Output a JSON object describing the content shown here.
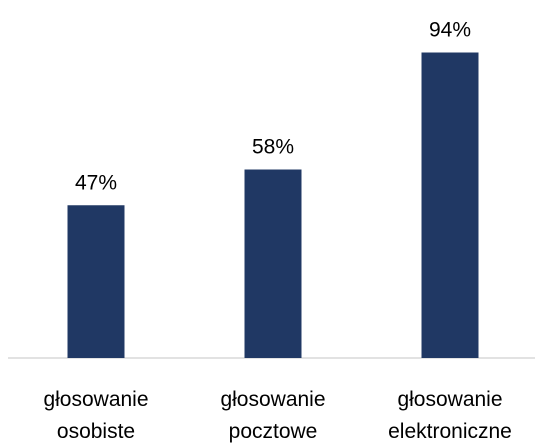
{
  "chart_data": {
    "type": "bar",
    "title": "",
    "xlabel": "",
    "ylabel": "",
    "categories": [
      [
        "głosowanie",
        "osobiste"
      ],
      [
        "głosowanie",
        "pocztowe"
      ],
      [
        "głosowanie",
        "elektroniczne"
      ]
    ],
    "values": [
      47,
      58,
      94
    ],
    "data_labels": [
      "47%",
      "58%",
      "94%"
    ],
    "ylim": [
      0,
      100
    ],
    "grid": false,
    "legend": "none",
    "colors": {
      "bar": "#203864",
      "axis": "#d9d9d9",
      "text": "#000000"
    }
  }
}
